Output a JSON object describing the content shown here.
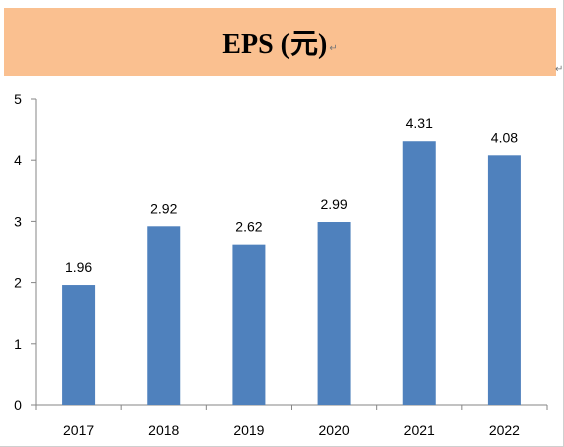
{
  "title": {
    "text": "EPS (元)",
    "para_mark": "↵",
    "para_mark_corner": "↵"
  },
  "colors": {
    "banner": "#fac090",
    "bar": "#4f81bd",
    "axis": "#868686"
  },
  "chart_data": {
    "type": "bar",
    "title": "EPS (元)",
    "categories": [
      "2017",
      "2018",
      "2019",
      "2020",
      "2021",
      "2022"
    ],
    "values": [
      1.96,
      2.92,
      2.62,
      2.99,
      4.31,
      4.08
    ],
    "data_labels": [
      "1.96",
      "2.92",
      "2.62",
      "2.99",
      "4.31",
      "4.08"
    ],
    "y_ticks": [
      "0",
      "1",
      "2",
      "3",
      "4",
      "5"
    ],
    "ylim": [
      0,
      5
    ],
    "xlabel": "",
    "ylabel": "",
    "grid": false,
    "legend": "none"
  }
}
